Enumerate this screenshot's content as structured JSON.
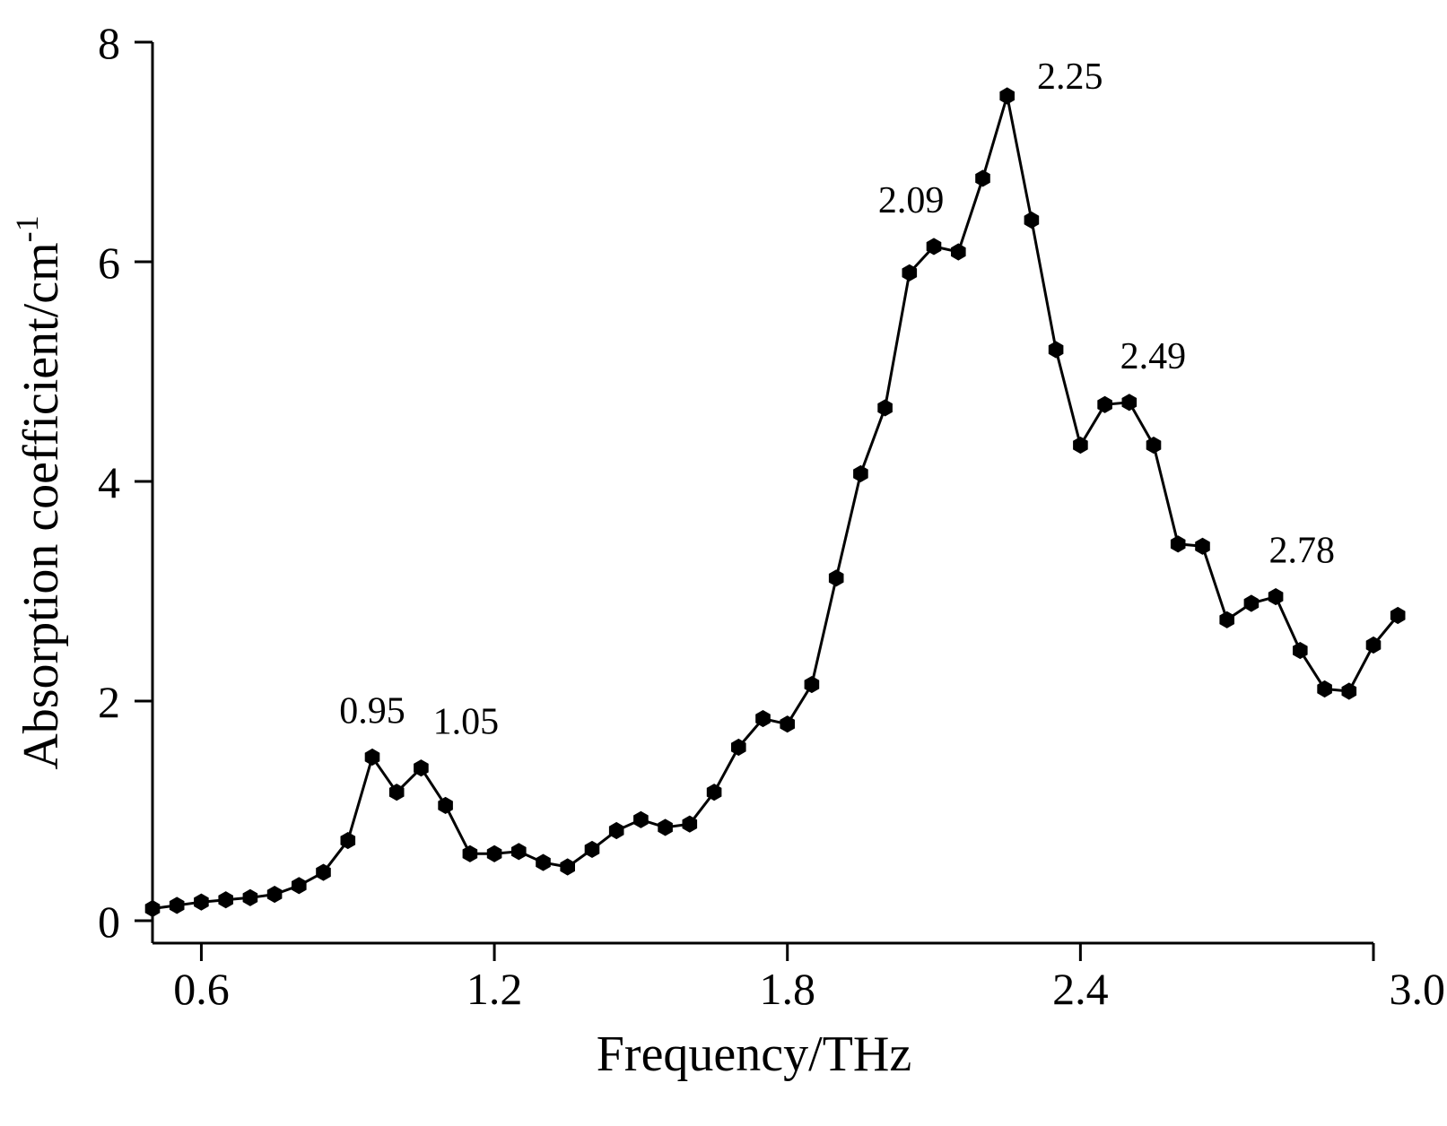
{
  "chart_data": {
    "type": "line",
    "title": "",
    "xlabel": "Frequency/THz",
    "ylabel": "Absorption coefficient/cm",
    "ylabel_superscript": "-1",
    "xlim": [
      0.5,
      3.0
    ],
    "ylim": [
      0,
      8
    ],
    "x_ticks": [
      0.6,
      1.2,
      1.8,
      2.4,
      3.0
    ],
    "x_tick_labels": [
      "0.6",
      "1.2",
      "1.8",
      "2.4",
      "3.0"
    ],
    "y_ticks": [
      0,
      2,
      4,
      6,
      8
    ],
    "y_tick_labels": [
      "0",
      "2",
      "4",
      "6",
      "8"
    ],
    "grid": false,
    "marker": "hexagon",
    "line_color": "#000000",
    "series": [
      {
        "x": [
          0.5,
          0.55,
          0.6,
          0.65,
          0.7,
          0.75,
          0.8,
          0.85,
          0.9,
          0.95,
          1.0,
          1.05,
          1.1,
          1.15,
          1.2,
          1.25,
          1.3,
          1.35,
          1.4,
          1.45,
          1.5,
          1.55,
          1.6,
          1.65,
          1.7,
          1.75,
          1.8,
          1.85,
          1.9,
          1.95,
          2.0,
          2.05,
          2.1,
          2.15,
          2.2,
          2.25,
          2.3,
          2.35,
          2.4,
          2.45,
          2.5,
          2.55,
          2.6,
          2.65,
          2.7,
          2.75,
          2.8,
          2.85,
          2.9,
          2.95,
          3.0,
          3.05
        ],
        "y": [
          0.11,
          0.14,
          0.17,
          0.19,
          0.21,
          0.24,
          0.32,
          0.44,
          0.73,
          1.49,
          1.17,
          1.39,
          1.05,
          0.61,
          0.61,
          0.63,
          0.53,
          0.49,
          0.65,
          0.82,
          0.92,
          0.85,
          0.88,
          1.17,
          1.58,
          1.84,
          1.79,
          2.15,
          3.12,
          4.07,
          4.67,
          5.9,
          6.14,
          6.09,
          6.76,
          7.51,
          6.38,
          5.2,
          4.33,
          4.7,
          4.72,
          4.33,
          3.43,
          3.41,
          2.74,
          2.89,
          2.95,
          2.46,
          2.11,
          2.09,
          2.51,
          2.78
        ]
      }
    ],
    "annotations": [
      {
        "text": "0.95",
        "x": 0.95,
        "y": 1.49
      },
      {
        "text": "1.05",
        "x": 1.05,
        "y": 1.39
      },
      {
        "text": "2.09",
        "x": 2.09,
        "y": 6.14
      },
      {
        "text": "2.25",
        "x": 2.25,
        "y": 7.51
      },
      {
        "text": "2.49",
        "x": 2.49,
        "y": 4.72
      },
      {
        "text": "2.78",
        "x": 2.78,
        "y": 2.95
      }
    ]
  }
}
